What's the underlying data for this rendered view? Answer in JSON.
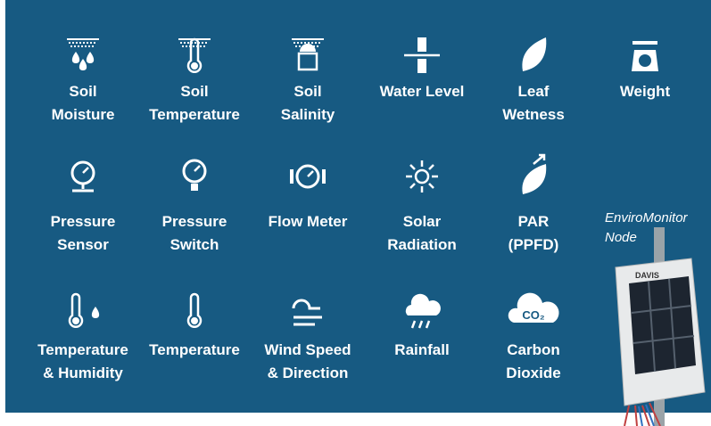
{
  "items": [
    {
      "label": [
        "Soil",
        "Moisture"
      ]
    },
    {
      "label": [
        "Soil",
        "Temperature"
      ]
    },
    {
      "label": [
        "Soil",
        "Salinity"
      ]
    },
    {
      "label": [
        "Water Level"
      ]
    },
    {
      "label": [
        "Leaf",
        "Wetness"
      ]
    },
    {
      "label": [
        "Weight"
      ]
    },
    {
      "label": [
        "Pressure",
        "Sensor"
      ]
    },
    {
      "label": [
        "Pressure",
        "Switch"
      ]
    },
    {
      "label": [
        "Flow Meter"
      ]
    },
    {
      "label": [
        "Solar",
        "Radiation"
      ]
    },
    {
      "label": [
        "PAR",
        "(PPFD)"
      ]
    },
    {
      "label": [
        "Temperature",
        "& Humidity"
      ]
    },
    {
      "label": [
        "Temperature"
      ]
    },
    {
      "label": [
        "Wind Speed",
        "& Direction"
      ]
    },
    {
      "label": [
        "Rainfall"
      ]
    },
    {
      "label": [
        "Carbon",
        "Dioxide"
      ],
      "badge": "CO₂"
    }
  ],
  "device": {
    "caption": [
      "EnviroMonitor",
      "Node"
    ],
    "brand": "DAVIS"
  }
}
